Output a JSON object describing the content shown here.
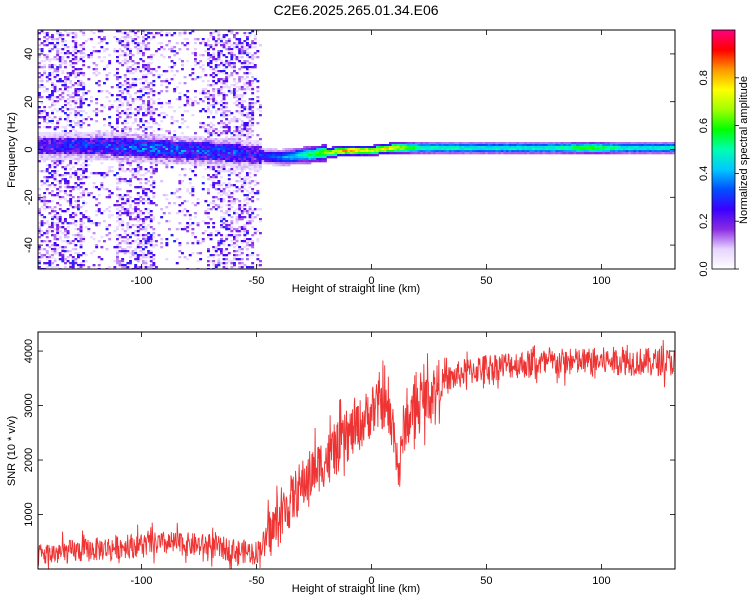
{
  "title": "C2E6.2025.265.01.34.E06",
  "chart_data": [
    {
      "type": "heatmap",
      "xlabel": "Height of straight line (km)",
      "ylabel": "Frequency (Hz)",
      "xlim": [
        -145,
        132
      ],
      "ylim": [
        -50,
        50
      ],
      "xticks": [
        -100,
        -50,
        0,
        50,
        100
      ],
      "yticks": [
        -40,
        -20,
        0,
        20,
        40
      ],
      "grid": false,
      "colorbar": {
        "label": "Normalized spectral amplitude",
        "range": [
          0,
          1
        ],
        "ticks": [
          0.0,
          0.2,
          0.4,
          0.6,
          0.8
        ],
        "tick_labels": [
          "0.0",
          "0.2",
          "0.4",
          "0.6",
          "0.8"
        ],
        "colors": [
          "#ffffff",
          "#e6d4ff",
          "#8a2be2",
          "#3a00ff",
          "#0050ff",
          "#00c8ff",
          "#00ffb0",
          "#00ff00",
          "#a0ff00",
          "#ffff00",
          "#ff9900",
          "#ff0000",
          "#ff0080"
        ]
      },
      "ridge": [
        {
          "x": -140,
          "freq": 2,
          "amp": 0.3
        },
        {
          "x": -120,
          "freq": 2,
          "amp": 0.35
        },
        {
          "x": -100,
          "freq": 1,
          "amp": 0.4
        },
        {
          "x": -80,
          "freq": 0,
          "amp": 0.38
        },
        {
          "x": -60,
          "freq": -1,
          "amp": 0.35
        },
        {
          "x": -50,
          "freq": -2,
          "amp": 0.3
        },
        {
          "x": -40,
          "freq": -3,
          "amp": 0.4
        },
        {
          "x": -30,
          "freq": -2,
          "amp": 0.55
        },
        {
          "x": -20,
          "freq": -1,
          "amp": 0.75
        },
        {
          "x": -10,
          "freq": 0,
          "amp": 0.92
        },
        {
          "x": 0,
          "freq": 0,
          "amp": 0.8
        },
        {
          "x": 8,
          "freq": 1,
          "amp": 0.88
        },
        {
          "x": 20,
          "freq": 1,
          "amp": 0.6
        },
        {
          "x": 40,
          "freq": 1,
          "amp": 0.55
        },
        {
          "x": 60,
          "freq": 1,
          "amp": 0.55
        },
        {
          "x": 80,
          "freq": 1,
          "amp": 0.58
        },
        {
          "x": 95,
          "freq": 1,
          "amp": 0.7
        },
        {
          "x": 110,
          "freq": 1,
          "amp": 0.55
        },
        {
          "x": 132,
          "freq": 1,
          "amp": 0.55
        }
      ]
    },
    {
      "type": "line",
      "xlabel": "Height of straight line (km)",
      "ylabel": "SNR (10 * v/v)",
      "xlim": [
        -145,
        132
      ],
      "ylim": [
        0,
        4350
      ],
      "xticks": [
        -100,
        -50,
        0,
        50,
        100
      ],
      "yticks": [
        1000,
        2000,
        3000,
        4000
      ],
      "grid": false,
      "series": [
        {
          "color": "#ee3333",
          "points": [
            [
              -145,
              250
            ],
            [
              -130,
              320
            ],
            [
              -115,
              380
            ],
            [
              -100,
              450
            ],
            [
              -85,
              470
            ],
            [
              -70,
              420
            ],
            [
              -60,
              340
            ],
            [
              -50,
              300
            ],
            [
              -45,
              600
            ],
            [
              -40,
              900
            ],
            [
              -35,
              1250
            ],
            [
              -30,
              1550
            ],
            [
              -25,
              1800
            ],
            [
              -20,
              2000
            ],
            [
              -15,
              2200
            ],
            [
              -10,
              2450
            ],
            [
              -5,
              2650
            ],
            [
              0,
              2900
            ],
            [
              5,
              3050
            ],
            [
              10,
              2550
            ],
            [
              12,
              1700
            ],
            [
              14,
              2600
            ],
            [
              20,
              3000
            ],
            [
              30,
              3400
            ],
            [
              40,
              3600
            ],
            [
              50,
              3700
            ],
            [
              60,
              3750
            ],
            [
              75,
              3780
            ],
            [
              90,
              3800
            ],
            [
              105,
              3820
            ],
            [
              120,
              3800
            ],
            [
              132,
              3800
            ]
          ]
        }
      ]
    }
  ]
}
